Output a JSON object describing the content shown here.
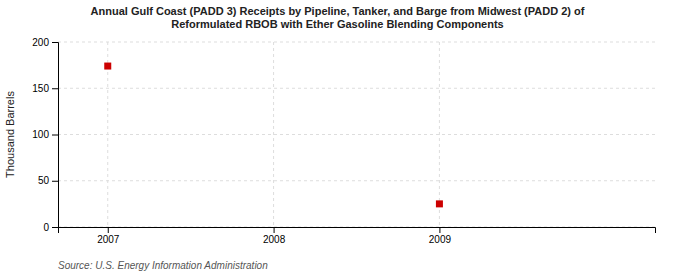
{
  "chart_data": {
    "type": "scatter",
    "title": "Annual Gulf Coast (PADD 3) Receipts by Pipeline, Tanker, and Barge from Midwest (PADD 2) of\nReformulated RBOB with Ether Gasoline Blending Components",
    "ylabel": "Thousand Barrels",
    "source": "Source: U.S. Energy Information Administration",
    "x": [
      2007,
      2009
    ],
    "values": [
      174,
      25
    ],
    "color": "#cc0000",
    "marker": "square",
    "xlim": [
      2006.7,
      2010.3
    ],
    "xticks": [
      2007,
      2008,
      2009
    ],
    "ylim": [
      0,
      200
    ],
    "yticks": [
      0,
      50,
      100,
      150,
      200
    ],
    "grid": true
  }
}
